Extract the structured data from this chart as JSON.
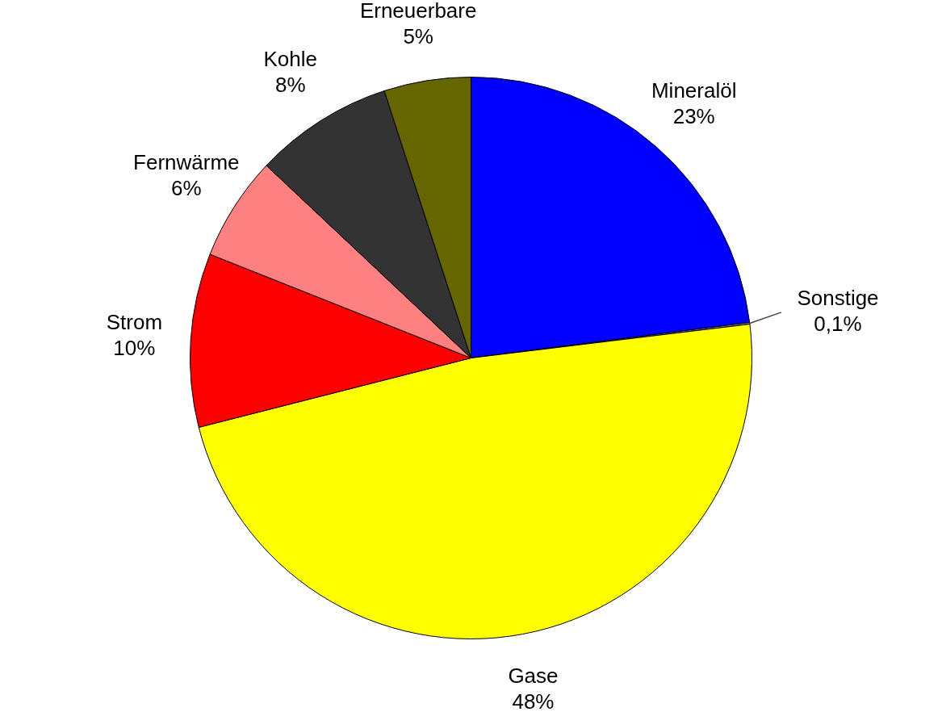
{
  "chart_data": {
    "type": "pie",
    "categories": [
      "Mineralöl",
      "Sonstige",
      "Gase",
      "Strom",
      "Fernwärme",
      "Kohle",
      "Erneuerbare"
    ],
    "values": [
      23,
      0.1,
      48,
      10,
      6,
      8,
      5
    ],
    "value_labels": [
      "23%",
      "0,1%",
      "48%",
      "10%",
      "6%",
      "8%",
      "5%"
    ],
    "colors": [
      "#0000ff",
      "#808080",
      "#ffff00",
      "#ff0000",
      "#ff8080",
      "#333333",
      "#666600"
    ],
    "legend": false
  }
}
